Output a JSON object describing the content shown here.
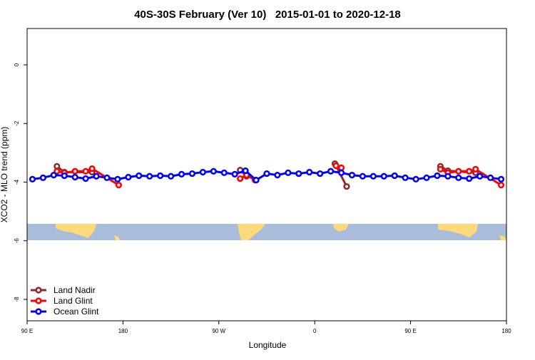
{
  "chart_data": {
    "type": "line",
    "title": "40S-30S February (Ver 10)   2015-01-01 to 2020-12-18",
    "x_label": "Longitude",
    "y_label": "XCO2 - MLO trend (ppm)",
    "xlim": [
      90,
      540
    ],
    "ylim": [
      -8.73,
      1.24
    ],
    "xticks": [
      {
        "value": 90,
        "label": "90 E"
      },
      180,
      {
        "value": 270,
        "label": "90 W"
      },
      {
        "value": 360,
        "label": "0"
      },
      {
        "value": 450,
        "label": "90 E"
      },
      {
        "value": 540,
        "label": "180"
      }
    ],
    "yticks": [
      0,
      -2,
      -4,
      -6,
      -8
    ],
    "legend": "bottom-left",
    "series": [
      {
        "name": "Land Nadir",
        "color": "#8b2c2c",
        "x": [
          118,
          125,
          151,
          null,
          290,
          296,
          null,
          379,
          390,
          null,
          478,
          485,
          511
        ],
        "values": [
          -3.46,
          -3.66,
          -3.66,
          null,
          -3.59,
          -3.8,
          null,
          -3.37,
          -4.15,
          null,
          -3.46,
          -3.61,
          -3.68
        ]
      },
      {
        "name": "Land Glint",
        "color": "#ff0000",
        "x": [
          118,
          125,
          135,
          145,
          151,
          176,
          null,
          290,
          296,
          304,
          null,
          380,
          385,
          null,
          478,
          485,
          495,
          505,
          511,
          535
        ],
        "values": [
          -3.63,
          -3.68,
          -3.63,
          -3.63,
          -3.54,
          -4.1,
          null,
          -3.88,
          -3.76,
          -3.93,
          null,
          -3.44,
          -3.51,
          null,
          -3.56,
          -3.68,
          -3.63,
          -3.63,
          -3.56,
          -4.1
        ]
      },
      {
        "name": "Ocean Glint",
        "color": "#0000ff",
        "x": [
          95,
          105,
          115,
          125,
          135,
          145,
          155,
          165,
          175,
          185,
          195,
          205,
          215,
          225,
          235,
          245,
          255,
          265,
          275,
          285,
          295,
          305,
          315,
          325,
          335,
          345,
          355,
          365,
          375,
          385,
          395,
          405,
          415,
          425,
          435,
          445,
          455,
          465,
          475,
          485,
          495,
          505,
          515,
          525,
          535
        ],
        "values": [
          -3.9,
          -3.85,
          -3.76,
          -3.78,
          -3.83,
          -3.88,
          -3.8,
          -3.85,
          -3.9,
          -3.83,
          -3.78,
          -3.8,
          -3.78,
          -3.8,
          -3.73,
          -3.71,
          -3.66,
          -3.63,
          -3.68,
          -3.73,
          -3.61,
          -3.93,
          -3.71,
          -3.76,
          -3.68,
          -3.71,
          -3.66,
          -3.71,
          -3.63,
          -3.68,
          -3.76,
          -3.8,
          -3.8,
          -3.8,
          -3.78,
          -3.85,
          -3.9,
          -3.85,
          -3.78,
          -3.8,
          -3.85,
          -3.88,
          -3.8,
          -3.85,
          -3.9
        ]
      }
    ]
  }
}
